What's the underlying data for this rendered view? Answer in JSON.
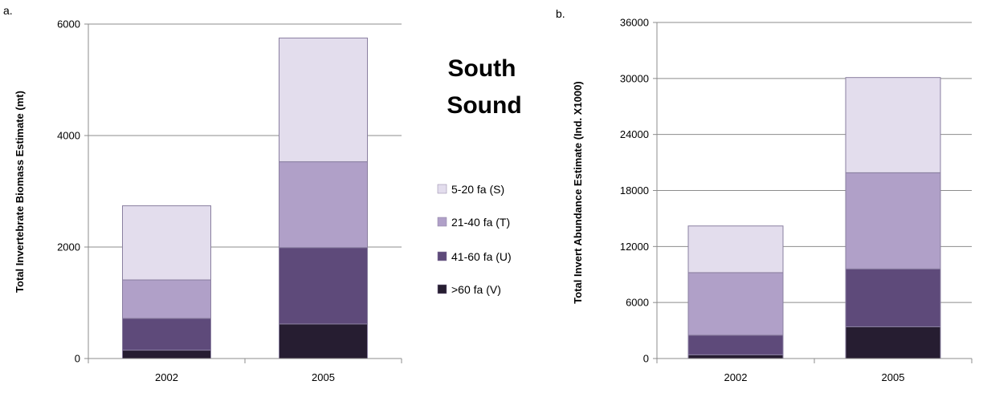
{
  "center_title": {
    "line1": "South",
    "line2": "Sound"
  },
  "legend": [
    {
      "label": "5-20 fa (S)",
      "color": "#e3dded"
    },
    {
      "label": "21-40 fa (T)",
      "color": "#b0a0c8"
    },
    {
      "label": "41-60 fa (U)",
      "color": "#5e4a7a"
    },
    {
      "label": ">60 fa (V)",
      "color": "#261d31"
    }
  ],
  "chart_data": [
    {
      "type": "bar",
      "stacked": true,
      "panel_label": "a.",
      "title": "",
      "xlabel": "",
      "ylabel": "Total Invertebrate Biomass Estimate (mt)",
      "ylim": [
        0,
        6000
      ],
      "yticks": [
        0,
        2000,
        4000,
        6000
      ],
      "grid": true,
      "categories": [
        "2002",
        "2005"
      ],
      "series": [
        {
          "name": ">60 fa (V)",
          "values": [
            150,
            620
          ]
        },
        {
          "name": "41-60 fa (U)",
          "values": [
            570,
            1370
          ]
        },
        {
          "name": "21-40 fa (T)",
          "values": [
            690,
            1540
          ]
        },
        {
          "name": "5-20 fa (S)",
          "values": [
            1330,
            2220
          ]
        }
      ]
    },
    {
      "type": "bar",
      "stacked": true,
      "panel_label": "b.",
      "title": "",
      "xlabel": "",
      "ylabel": "Total Invert Abundance Estimate (Ind. X1000)",
      "ylim": [
        0,
        36000
      ],
      "yticks": [
        0,
        6000,
        12000,
        18000,
        24000,
        30000,
        36000
      ],
      "grid": true,
      "categories": [
        "2002",
        "2005"
      ],
      "series": [
        {
          "name": ">60 fa (V)",
          "values": [
            400,
            3400
          ]
        },
        {
          "name": "41-60 fa (U)",
          "values": [
            2100,
            6200
          ]
        },
        {
          "name": "21-40 fa (T)",
          "values": [
            6700,
            10300
          ]
        },
        {
          "name": "5-20 fa (S)",
          "values": [
            5000,
            10200
          ]
        }
      ]
    }
  ]
}
